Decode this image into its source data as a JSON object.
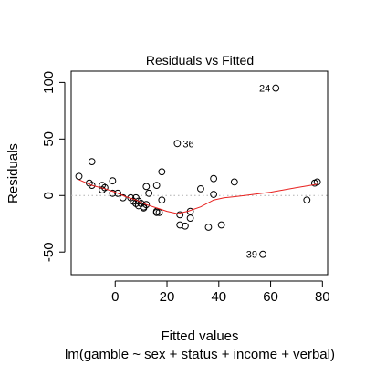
{
  "chart_data": {
    "type": "scatter",
    "title": "Residuals vs Fitted",
    "xlabel": "Fitted values",
    "subtitle": "lm(gamble ~ sex + status + income + verbal)",
    "ylabel": "Residuals",
    "xlim": [
      -17,
      82
    ],
    "ylim": [
      -70,
      110
    ],
    "xticks": [
      0,
      20,
      40,
      60,
      80
    ],
    "yticks": [
      -50,
      0,
      50,
      100
    ],
    "xtick_labels": [
      "0",
      "20",
      "40",
      "60",
      "80"
    ],
    "ytick_labels": [
      "-50",
      "0",
      "50",
      "100"
    ],
    "reference_line": {
      "y": 0,
      "style": "dotted",
      "color": "#b0b0b0"
    },
    "points": [
      {
        "x": -14,
        "y": 17
      },
      {
        "x": -10,
        "y": 11
      },
      {
        "x": -9,
        "y": 30
      },
      {
        "x": -9,
        "y": 9
      },
      {
        "x": -5,
        "y": 9
      },
      {
        "x": -5,
        "y": 5
      },
      {
        "x": -4,
        "y": 7
      },
      {
        "x": -1,
        "y": 13
      },
      {
        "x": -1,
        "y": 2
      },
      {
        "x": 1,
        "y": 2
      },
      {
        "x": 3,
        "y": -2
      },
      {
        "x": 6,
        "y": -2
      },
      {
        "x": 7,
        "y": -5
      },
      {
        "x": 8,
        "y": -7
      },
      {
        "x": 8,
        "y": -2
      },
      {
        "x": 9,
        "y": -5
      },
      {
        "x": 9,
        "y": -9
      },
      {
        "x": 10,
        "y": -7
      },
      {
        "x": 11,
        "y": -10
      },
      {
        "x": 11,
        "y": -11
      },
      {
        "x": 12,
        "y": 8
      },
      {
        "x": 12,
        "y": -8
      },
      {
        "x": 13,
        "y": 2
      },
      {
        "x": 16,
        "y": -14
      },
      {
        "x": 16,
        "y": 9
      },
      {
        "x": 16,
        "y": -15
      },
      {
        "x": 17,
        "y": -15
      },
      {
        "x": 18,
        "y": -4
      },
      {
        "x": 18,
        "y": 21
      },
      {
        "x": 24,
        "y": 46
      },
      {
        "x": 25,
        "y": -17
      },
      {
        "x": 25,
        "y": -26
      },
      {
        "x": 27,
        "y": -27
      },
      {
        "x": 29,
        "y": -20
      },
      {
        "x": 29,
        "y": -14
      },
      {
        "x": 33,
        "y": 6
      },
      {
        "x": 36,
        "y": -28
      },
      {
        "x": 38,
        "y": 15
      },
      {
        "x": 38,
        "y": 1
      },
      {
        "x": 41,
        "y": -26
      },
      {
        "x": 46,
        "y": 12
      },
      {
        "x": 57,
        "y": -52
      },
      {
        "x": 62,
        "y": 95
      },
      {
        "x": 74,
        "y": -4
      },
      {
        "x": 77,
        "y": 11
      },
      {
        "x": 78,
        "y": 12
      }
    ],
    "point_labels": [
      {
        "text": "24",
        "x": 62,
        "y": 95,
        "side": "left"
      },
      {
        "text": "36",
        "x": 24,
        "y": 46,
        "side": "right"
      },
      {
        "text": "39",
        "x": 57,
        "y": -52,
        "side": "left"
      }
    ],
    "smooth_line": {
      "color": "#e8201e",
      "points": [
        {
          "x": -14,
          "y": 14
        },
        {
          "x": -9,
          "y": 9
        },
        {
          "x": -4,
          "y": 6
        },
        {
          "x": 0,
          "y": 3
        },
        {
          "x": 4,
          "y": -1
        },
        {
          "x": 8,
          "y": -4
        },
        {
          "x": 12,
          "y": -8
        },
        {
          "x": 16,
          "y": -11
        },
        {
          "x": 20,
          "y": -14
        },
        {
          "x": 24,
          "y": -16
        },
        {
          "x": 28,
          "y": -14
        },
        {
          "x": 33,
          "y": -10
        },
        {
          "x": 38,
          "y": -4
        },
        {
          "x": 42,
          "y": -2
        },
        {
          "x": 50,
          "y": 0
        },
        {
          "x": 60,
          "y": 3
        },
        {
          "x": 70,
          "y": 7
        },
        {
          "x": 78,
          "y": 10
        }
      ]
    }
  }
}
